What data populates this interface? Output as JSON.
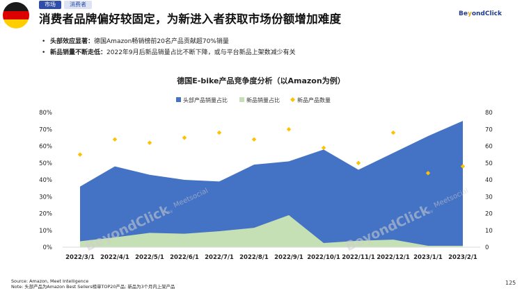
{
  "header": {
    "tags": [
      "市场",
      "消费者"
    ],
    "title": "消费者品牌偏好较固定，为新进入者获取市场份额增加难度",
    "logo": {
      "main": "Be",
      "accent": "y",
      "rest": "ondClick"
    }
  },
  "bullets": [
    {
      "bold": "头部效应显著：",
      "text": "德国Amazon畅销榜前20名产品贡献超70%销量"
    },
    {
      "bold": "新品销量不断走低：",
      "text": "2022年9月后新品销量占比不断下降，或与平台新品上架数减少有关"
    }
  ],
  "watermark": {
    "brand": "BeyondClick",
    "by": "by",
    "partner": "Meetsocial"
  },
  "colors": {
    "head_share": "#4472c4",
    "new_share": "#c5e0b4",
    "new_count": "#ffc000",
    "flag": [
      "#1a1a1a",
      "#dd0000",
      "#ffce00"
    ]
  },
  "chart_data": {
    "type": "area",
    "title": "德国E-bike产品竞争度分析（以Amazon为例）",
    "categories": [
      "2022/3/1",
      "2022/4/1",
      "2022/5/1",
      "2022/6/1",
      "2022/7/1",
      "2022/8/1",
      "2022/9/1",
      "2022/10/1",
      "2022/11/1",
      "2022/12/1",
      "2023/1/1",
      "2023/2/1"
    ],
    "y_left": {
      "ticks": [
        "0%",
        "10%",
        "20%",
        "30%",
        "40%",
        "50%",
        "60%",
        "70%",
        "80%"
      ],
      "ylim": [
        0,
        80
      ]
    },
    "y_right": {
      "ticks": [
        "0",
        "10",
        "20",
        "30",
        "40",
        "50",
        "60",
        "70",
        "80"
      ],
      "ylim": [
        0,
        80
      ]
    },
    "series": [
      {
        "name": "头部产品销量占比",
        "kind": "area",
        "axis": "left",
        "unit": "%",
        "values": [
          36,
          48,
          43,
          40,
          39,
          49,
          51,
          58,
          46,
          56,
          66,
          75
        ]
      },
      {
        "name": "新品销量占比",
        "kind": "area",
        "axis": "left",
        "unit": "%",
        "values": [
          3.5,
          5.8,
          8.5,
          8,
          9.5,
          11.5,
          19,
          2.5,
          3.8,
          4.5,
          0.8,
          0.8
        ]
      },
      {
        "name": "新品产品数量",
        "kind": "scatter",
        "axis": "right",
        "values": [
          55,
          64,
          62,
          65,
          68,
          64,
          70,
          59,
          50,
          68,
          44,
          48
        ]
      }
    ],
    "legend_position": "top-center",
    "grid": false
  },
  "footer": {
    "source": "Source: Amazon, Meet Intelligence",
    "note": "Note: 头部产品为Amazon Best Sellers榜单TOP20产品; 新品为3个月内上架产品"
  },
  "page_number": "125"
}
